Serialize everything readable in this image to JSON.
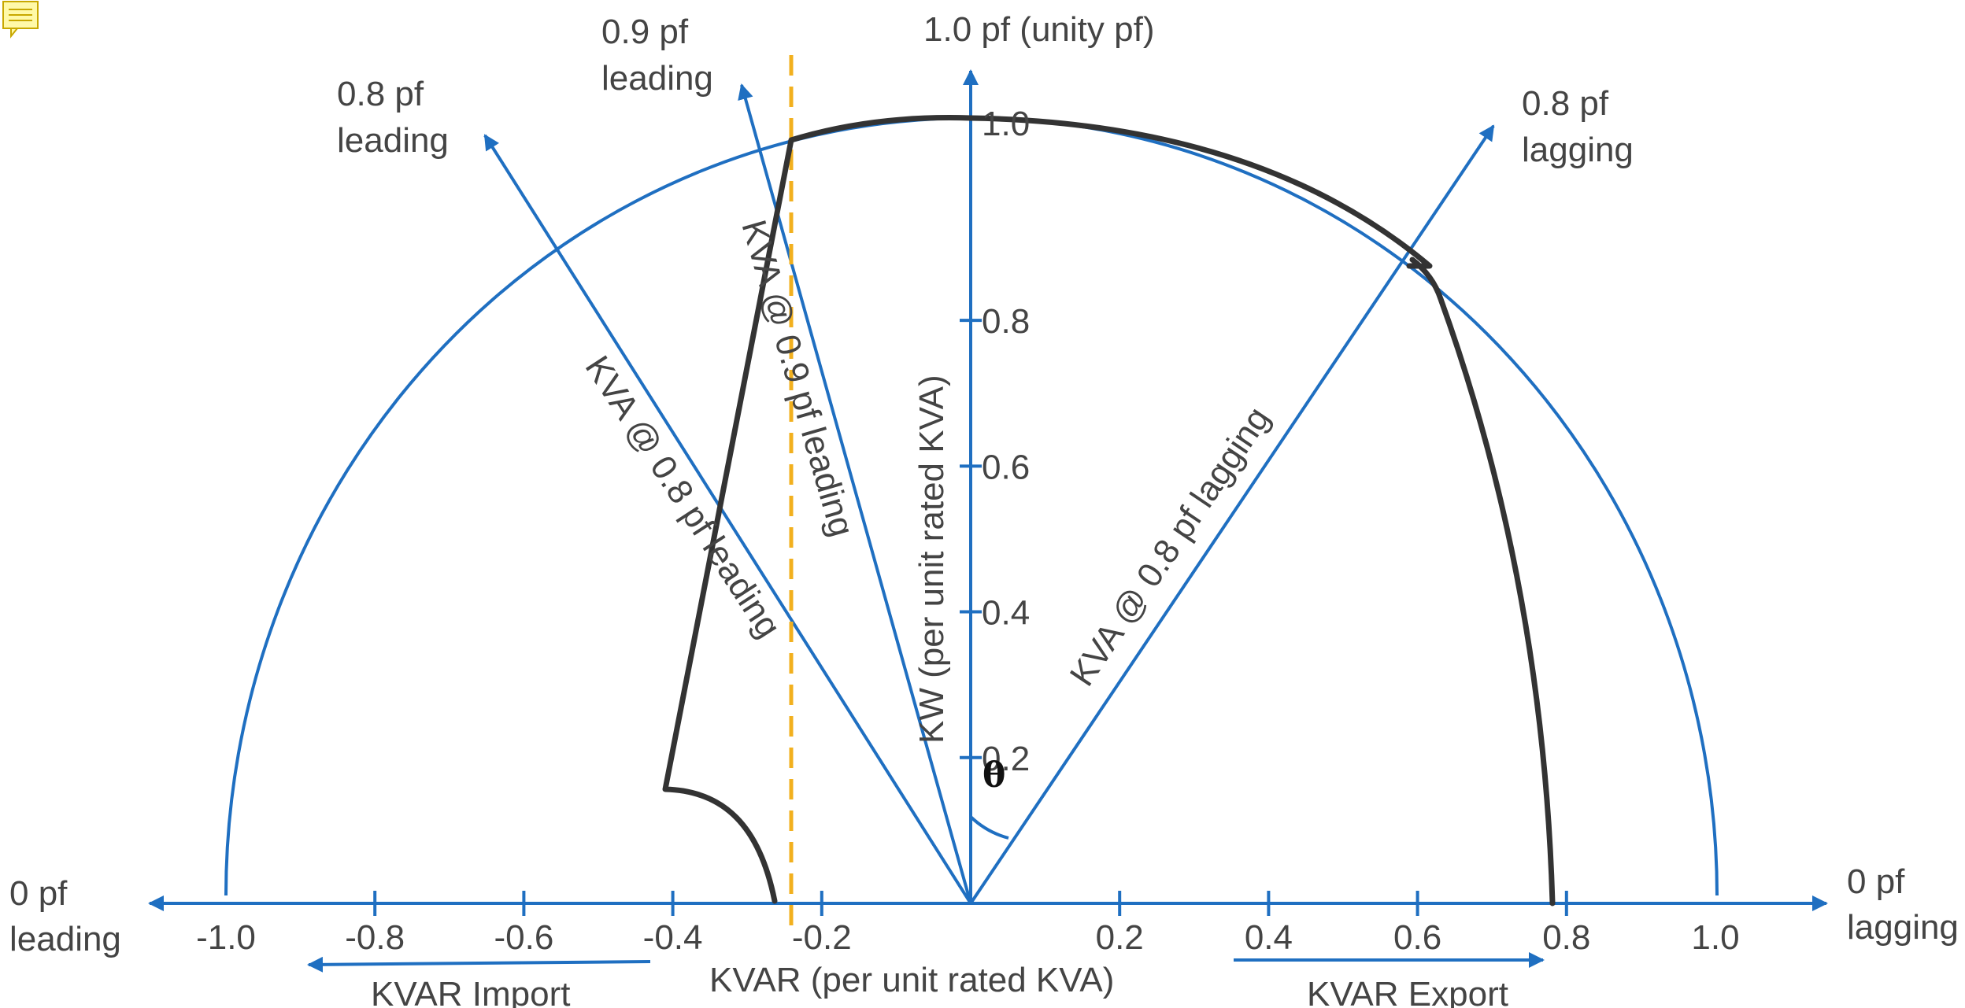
{
  "colors": {
    "axis": "#1f6fc1",
    "capability_curve": "#333333",
    "limit_line": "#f2b01e",
    "text": "#444444"
  },
  "icon": "note-icon",
  "labels": {
    "unity_pf": "1.0 pf (unity pf)",
    "pf09_leading_line1": "0.9 pf",
    "pf09_leading_line2": "leading",
    "pf08_leading_line1": "0.8 pf",
    "pf08_leading_line2": "leading",
    "pf08_lagging_line1": "0.8 pf",
    "pf08_lagging_line2": "lagging",
    "pf0_leading_line1": "0 pf",
    "pf0_leading_line2": "leading",
    "pf0_lagging_line1": "0 pf",
    "pf0_lagging_line2": "lagging",
    "kva_09_leading": "KVA @ 0.9 pf leading",
    "kva_08_leading": "KVA @ 0.8 pf leading",
    "kva_08_lagging": "KVA @ 0.8 pf lagging",
    "kw_axis": "KW (per unit rated KVA)",
    "kvar_axis": "KVAR (per unit rated KVA)",
    "kvar_import": "KVAR Import",
    "kvar_export": "KVAR Export",
    "theta": "θ"
  },
  "kw_ticks": [
    "1.0",
    "0.8",
    "0.6",
    "0.4",
    "0.2"
  ],
  "kvar_ticks": [
    "-1.0",
    "-0.8",
    "-0.6",
    "-0.4",
    "-0.2",
    "0.2",
    "0.4",
    "0.6",
    "0.8",
    "1.0"
  ],
  "kw_tick_values": [
    1.0,
    0.8,
    0.6,
    0.4,
    0.2
  ],
  "kvar_tick_values": [
    -1.0,
    -0.8,
    -0.6,
    -0.4,
    -0.2,
    0.2,
    0.4,
    0.6,
    0.8,
    1.0
  ],
  "capability_curve": {
    "points_kvar_kw": [
      [
        -0.4,
        0.16
      ],
      [
        -0.24,
        1.0
      ],
      [
        0.0,
        1.02
      ],
      [
        0.6,
        0.85
      ],
      [
        0.8,
        0.0
      ]
    ],
    "leading_limit_kvar": -0.24
  }
}
